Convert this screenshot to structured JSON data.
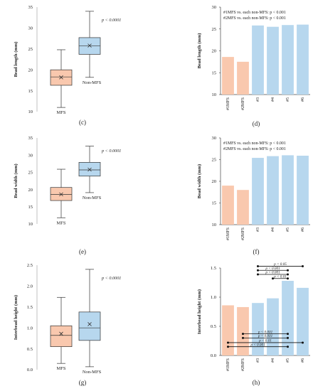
{
  "chart_data": [
    {
      "id": "c",
      "type": "box",
      "panel_label": "(c)",
      "ylabel": "Bead length (mm)",
      "ylim": [
        10,
        35
      ],
      "yticks": [
        10,
        15,
        20,
        25,
        30,
        35
      ],
      "p_label": "p < 0.0001",
      "boxes": [
        {
          "label": "MFS",
          "color": "#f9c8ae",
          "min": 11.0,
          "q1": 16.3,
          "median": 18.3,
          "mean": 18.2,
          "q3": 20.0,
          "max": 24.8
        },
        {
          "label": "Non-MFS",
          "color": "#b7d7ee",
          "min": 18.2,
          "q1": 23.7,
          "median": 25.7,
          "mean": 25.8,
          "q3": 27.7,
          "max": 34.0
        }
      ]
    },
    {
      "id": "d",
      "type": "bar",
      "panel_label": "(d)",
      "ylabel": "Bead length (mm)",
      "ylim": [
        10,
        30
      ],
      "yticks": [
        10,
        15,
        20,
        25,
        30
      ],
      "notes": [
        "#1MFS vs. each non-MFS: p < 0.001",
        "#2MFS vs. each non-MFS: p < 0.001"
      ],
      "categories": [
        "#1MFS",
        "#2MFS",
        "#3",
        "#4",
        "#5",
        "#6"
      ],
      "values": [
        18.6,
        17.5,
        25.8,
        25.5,
        25.9,
        26.0
      ],
      "colors": [
        "#f9c8ae",
        "#f9c8ae",
        "#b7d7ee",
        "#b7d7ee",
        "#b7d7ee",
        "#b7d7ee"
      ]
    },
    {
      "id": "e",
      "type": "box",
      "panel_label": "(e)",
      "ylabel": "Bead width (mm)",
      "ylim": [
        10,
        35
      ],
      "yticks": [
        10,
        15,
        20,
        25,
        30,
        35
      ],
      "p_label": "p < 0.0001",
      "boxes": [
        {
          "label": "MFS",
          "color": "#f9c8ae",
          "min": 11.8,
          "q1": 16.8,
          "median": 18.6,
          "mean": 18.6,
          "q3": 20.6,
          "max": 25.9
        },
        {
          "label": "Non-MFS",
          "color": "#b7d7ee",
          "min": 19.1,
          "q1": 23.9,
          "median": 25.7,
          "mean": 25.8,
          "q3": 27.9,
          "max": 32.6
        }
      ]
    },
    {
      "id": "f",
      "type": "bar",
      "panel_label": "(f)",
      "ylabel": "Bead width (mm)",
      "ylim": [
        10,
        30
      ],
      "yticks": [
        10,
        15,
        20,
        25,
        30
      ],
      "notes": [
        "#1MFS vs. each non-MFS: p < 0.001",
        "#2MFS vs. each non-MFS: p < 0.001"
      ],
      "categories": [
        "#1MFS",
        "#2MFS",
        "#3",
        "#4",
        "#5",
        "#6"
      ],
      "values": [
        19.0,
        18.0,
        25.4,
        25.8,
        26.0,
        25.9
      ],
      "colors": [
        "#f9c8ae",
        "#f9c8ae",
        "#b7d7ee",
        "#b7d7ee",
        "#b7d7ee",
        "#b7d7ee"
      ]
    },
    {
      "id": "g",
      "type": "box",
      "panel_label": "(g)",
      "ylabel": "Interbead height (mm)",
      "ylim": [
        0,
        2.5
      ],
      "yticks": [
        0,
        0.5,
        1,
        1.5,
        2,
        2.5
      ],
      "ytick_labels": [
        "0.0",
        "0.5",
        "1.0",
        "1.5",
        "2.0",
        "2.5"
      ],
      "p_label": "p < 0.0001",
      "boxes": [
        {
          "label": "MFS",
          "color": "#f9c8ae",
          "min": 0.15,
          "q1": 0.55,
          "median": 0.82,
          "mean": 0.86,
          "q3": 1.05,
          "max": 1.73
        },
        {
          "label": "Non-MFS",
          "color": "#b7d7ee",
          "min": 0.07,
          "q1": 0.7,
          "median": 1.0,
          "mean": 1.09,
          "q3": 1.38,
          "max": 2.4
        }
      ]
    },
    {
      "id": "h",
      "type": "bar",
      "panel_label": "(h)",
      "ylabel": "Interbead height (mm)",
      "ylim": [
        0,
        1.5
      ],
      "yticks": [
        0,
        0.5,
        1,
        1.5
      ],
      "ytick_labels": [
        "0.0",
        "0.5",
        "1.0",
        "1.5"
      ],
      "categories": [
        "#1MFS",
        "#2MFS",
        "#3",
        "#4",
        "#5",
        "#6"
      ],
      "values": [
        0.86,
        0.83,
        0.9,
        0.98,
        1.28,
        1.16
      ],
      "colors": [
        "#f9c8ae",
        "#f9c8ae",
        "#b7d7ee",
        "#b7d7ee",
        "#b7d7ee",
        "#b7d7ee"
      ],
      "comparisons": [
        {
          "from": 2,
          "to": 5,
          "y": 1.53,
          "label": "p < 0.05"
        },
        {
          "from": 2,
          "to": 4,
          "y": 1.46,
          "label": "p < 0.001"
        },
        {
          "from": 2,
          "to": 4,
          "y": 1.39,
          "label": "p < 0.001"
        },
        {
          "from": 3,
          "to": 4,
          "y": 1.32,
          "label": "p < 0.01"
        },
        {
          "from": 1,
          "to": 4,
          "y": 0.37,
          "label": "p < 0.001"
        },
        {
          "from": 1,
          "to": 4,
          "y": 0.3,
          "label": "p < 0.001"
        },
        {
          "from": 0,
          "to": 5,
          "y": 0.22,
          "label": "p < 0.01"
        },
        {
          "from": 0,
          "to": 4,
          "y": 0.15,
          "label": "p < 0.001"
        }
      ]
    }
  ]
}
